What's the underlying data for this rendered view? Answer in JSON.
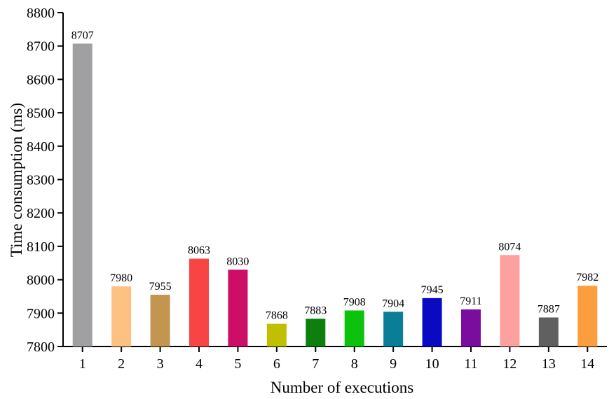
{
  "chart_data": {
    "type": "bar",
    "xlabel": "Number of executions",
    "ylabel": "Time consumption (ms)",
    "ylim": [
      7800,
      8800
    ],
    "yticks": [
      7800,
      7900,
      8000,
      8100,
      8200,
      8300,
      8400,
      8500,
      8600,
      8700,
      8800
    ],
    "categories": [
      "1",
      "2",
      "3",
      "4",
      "5",
      "6",
      "7",
      "8",
      "9",
      "10",
      "11",
      "12",
      "13",
      "14"
    ],
    "values": [
      8707,
      7980,
      7955,
      8063,
      8030,
      7868,
      7883,
      7908,
      7904,
      7945,
      7911,
      8074,
      7887,
      7982
    ],
    "colors": [
      "#a0a0a3",
      "#fdc182",
      "#c3964f",
      "#f84444",
      "#cc0e66",
      "#c0c000",
      "#0c7f0c",
      "#0cc20c",
      "#0b7e97",
      "#0a0ac2",
      "#7a0d9e",
      "#fda0a0",
      "#606060",
      "#fd9e3e"
    ],
    "grid": false,
    "legend": "none"
  }
}
